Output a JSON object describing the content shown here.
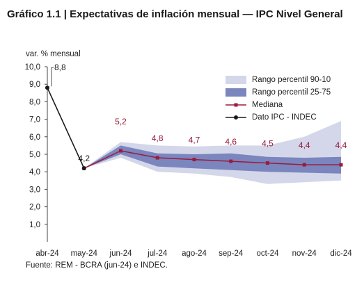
{
  "title": "Gráfico 1.1 | Expectativas de inflación mensual — IPC Nivel General",
  "source": "Fuente: REM - BCRA (jun-24) e INDEC.",
  "colors": {
    "band_90_10": "#d4d7ea",
    "band_25_75": "#7a86bd",
    "median": "#9b1b3c",
    "ipc": "#1a1a1a",
    "axis": "#444444"
  },
  "chart_data": {
    "type": "line",
    "categories": [
      "abr-24",
      "may-24",
      "jun-24",
      "jul-24",
      "ago-24",
      "sep-24",
      "oct-24",
      "nov-24",
      "dic-24"
    ],
    "ylabel": "var. % mensual",
    "ylim": [
      0,
      10
    ],
    "yticks": [
      "1,0",
      "2,0",
      "3,0",
      "4,0",
      "5,0",
      "6,0",
      "7,0",
      "8,0",
      "9,0",
      "10,0"
    ],
    "ytick_values": [
      1,
      2,
      3,
      4,
      5,
      6,
      7,
      8,
      9,
      10
    ],
    "legend_position": "top-right",
    "series": [
      {
        "name": "Rango percentil 90-10",
        "kind": "band",
        "low": [
          null,
          4.2,
          4.8,
          4.0,
          3.9,
          3.7,
          3.3,
          3.4,
          3.5
        ],
        "high": [
          null,
          4.2,
          5.7,
          5.5,
          5.45,
          5.5,
          5.5,
          6.0,
          6.9
        ]
      },
      {
        "name": "Rango percentil 25-75",
        "kind": "band",
        "low": [
          null,
          4.2,
          5.0,
          4.3,
          4.2,
          4.1,
          4.0,
          3.95,
          3.9
        ],
        "high": [
          null,
          4.2,
          5.5,
          5.05,
          5.0,
          5.05,
          4.85,
          4.8,
          4.85
        ]
      },
      {
        "name": "Mediana",
        "kind": "line",
        "values": [
          null,
          4.2,
          5.2,
          4.8,
          4.7,
          4.6,
          4.5,
          4.4,
          4.4
        ],
        "labels": [
          "",
          "",
          "5,2",
          "4,8",
          "4,7",
          "4,6",
          "4,5",
          "4,4",
          "4,4"
        ]
      },
      {
        "name": "Dato IPC - INDEC",
        "kind": "line",
        "values": [
          8.8,
          4.2,
          null,
          null,
          null,
          null,
          null,
          null,
          null
        ],
        "labels": [
          "8,8",
          "4,2",
          "",
          "",
          "",
          "",
          "",
          "",
          ""
        ]
      }
    ]
  }
}
